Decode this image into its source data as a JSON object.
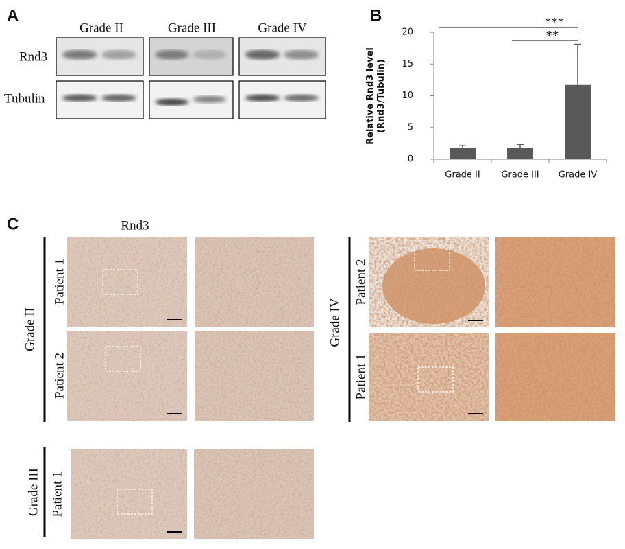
{
  "panel_labels": [
    "A",
    "B",
    "C"
  ],
  "panel_a": {
    "columns": [
      "Grade II",
      "Grade III",
      "Grade IV"
    ],
    "rows": [
      "Rnd3",
      "Tubulin"
    ]
  },
  "chart_data": {
    "type": "bar",
    "y_label": [
      "Relative Rnd3 level",
      "(Rnd3/Tubulin)"
    ],
    "categories": [
      "Grade II",
      "Grade III",
      "Grade IV"
    ],
    "values": [
      1.8,
      1.8,
      11.7
    ],
    "errors": [
      0.4,
      0.5,
      6.4
    ],
    "color": "#595959",
    "ylim": [
      0,
      20
    ],
    "yticks": [
      0,
      5,
      10,
      15,
      20
    ],
    "significance": [
      {
        "label": "***",
        "from": "Grade II",
        "to": "Grade IV"
      },
      {
        "label": "**",
        "from": "Grade III",
        "to": "Grade IV"
      }
    ]
  },
  "panel_c": {
    "stain": "Rnd3",
    "groups": [
      {
        "grade": "Grade II",
        "patients": [
          "Patient 1",
          "Patient 2"
        ]
      },
      {
        "grade": "Grade IV",
        "patients": [
          "Patient 2",
          "Patient 1"
        ]
      },
      {
        "grade": "Grade III",
        "patients": [
          "Patient 1"
        ]
      }
    ]
  }
}
